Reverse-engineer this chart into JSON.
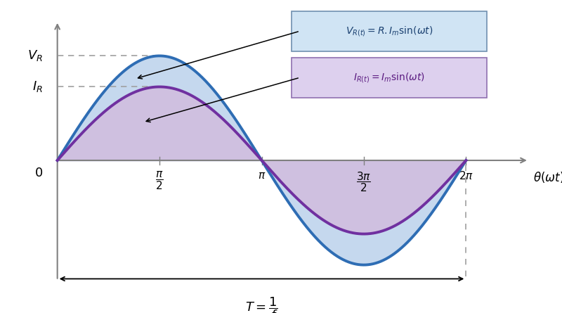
{
  "voltage_amplitude": 1.35,
  "current_amplitude": 0.95,
  "voltage_color": "#2e6db4",
  "current_color": "#7030a0",
  "fill_color_voltage": "#c5d8ee",
  "fill_color_current": "#cfc0e0",
  "background_color": "#ffffff",
  "axis_color": "#808080",
  "dashed_color": "#a0a0a0",
  "legend_voltage_bg": "#d0e4f4",
  "legend_current_bg": "#ddd0ee",
  "legend_voltage_border": "#7090b0",
  "legend_current_border": "#9070b0",
  "legend_voltage_text": "#1a4070",
  "legend_current_text": "#5a1a80",
  "xlim_left": -0.45,
  "xlim_right": 7.5,
  "ylim_bottom": -1.85,
  "ylim_top": 1.95
}
